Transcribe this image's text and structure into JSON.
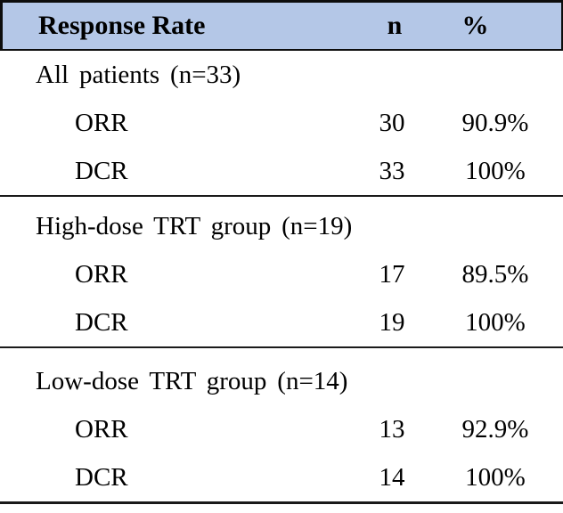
{
  "table": {
    "header": {
      "label": "Response Rate",
      "n": "n",
      "pct": "%"
    },
    "sections": [
      {
        "title": "All patients (n=33)",
        "rows": [
          {
            "label": "ORR",
            "n": "30",
            "pct": "90.9%"
          },
          {
            "label": "DCR",
            "n": "33",
            "pct": "100%"
          }
        ]
      },
      {
        "title": "High-dose TRT group (n=19)",
        "rows": [
          {
            "label": "ORR",
            "n": "17",
            "pct": "89.5%"
          },
          {
            "label": "DCR",
            "n": "19",
            "pct": "100%"
          }
        ]
      },
      {
        "title": "Low-dose TRT group (n=14)",
        "rows": [
          {
            "label": "ORR",
            "n": "13",
            "pct": "92.9%"
          },
          {
            "label": "DCR",
            "n": "14",
            "pct": "100%"
          }
        ]
      }
    ],
    "colors": {
      "header_bg": "#b4c7e7",
      "rule": "#0d0d0d",
      "text": "#000000"
    }
  }
}
